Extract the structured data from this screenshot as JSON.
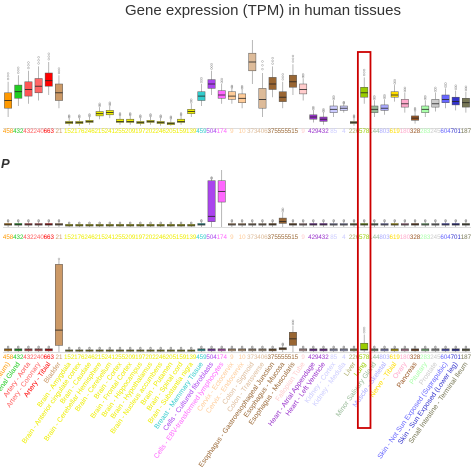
{
  "chart_data": {
    "type": "boxplot",
    "title": "Gene expression (TPM) in human tissues",
    "highlight": {
      "tissue": "Lung",
      "color": "#cc0000"
    },
    "panels": [
      {
        "id": "panel-1",
        "label": ""
      },
      {
        "id": "panel-2",
        "label": "P"
      },
      {
        "id": "panel-3",
        "label": ""
      }
    ],
    "tissues": [
      {
        "name": "Adipose - Visceral (Omentum)",
        "n": "458",
        "color": "#ff9900",
        "b1": [
          10,
          18,
          25,
          32,
          42
        ],
        "b2": [
          0,
          1,
          1.5,
          2,
          3
        ],
        "b3": [
          0,
          0.5,
          1,
          1.5,
          2
        ]
      },
      {
        "name": "Adrenal Gland",
        "n": "432",
        "color": "#22cc22",
        "b1": [
          20,
          27,
          33,
          39,
          48
        ],
        "b2": [
          0,
          1,
          1.5,
          2,
          3
        ],
        "b3": [
          0,
          0.5,
          1,
          1.5,
          2
        ]
      },
      {
        "name": "Artery - Aorta",
        "n": "432",
        "color": "#ff5555",
        "b1": [
          22,
          29,
          35,
          42,
          52
        ],
        "b2": [
          0,
          1,
          1.5,
          2,
          3
        ],
        "b3": [
          0,
          0.5,
          1,
          1.5,
          2
        ]
      },
      {
        "name": "Artery - Coronary",
        "n": "240",
        "color": "#ff6666",
        "b1": [
          25,
          32,
          38,
          45,
          56
        ],
        "b2": [
          0,
          1,
          1.5,
          2,
          3
        ],
        "b3": [
          0,
          0.5,
          1,
          1.5,
          2
        ]
      },
      {
        "name": "Artery - Tibial",
        "n": "663",
        "color": "#ff0000",
        "b1": [
          30,
          38,
          43,
          50,
          60
        ],
        "b2": [
          0,
          1,
          1.5,
          2,
          3
        ],
        "b3": [
          0,
          0.5,
          1,
          1.5,
          2
        ]
      },
      {
        "name": "Bladder",
        "n": "21",
        "color": "#cc9966",
        "b1": [
          18,
          25,
          32,
          40,
          48
        ],
        "b2": [
          0,
          1,
          1.5,
          2,
          3
        ],
        "b3": [
          0,
          3,
          10,
          40,
          42
        ]
      },
      {
        "name": "Brain - Amygdala",
        "n": "152",
        "color": "#eeee00",
        "b1": [
          2,
          4,
          5,
          6,
          9
        ],
        "b2": [
          0,
          0.5,
          1,
          1.5,
          2
        ],
        "b3": [
          0,
          0.3,
          0.6,
          1,
          1.5
        ]
      },
      {
        "name": "Brain - Anterior cingulate cortex",
        "n": "176",
        "color": "#eeee00",
        "b1": [
          2,
          4,
          5,
          6,
          9
        ],
        "b2": [
          0,
          0.5,
          1,
          1.5,
          2
        ],
        "b3": [
          0,
          0.3,
          0.6,
          1,
          1.5
        ]
      },
      {
        "name": "Brain - Caudate",
        "n": "246",
        "color": "#eeee00",
        "b1": [
          3,
          5,
          6,
          7,
          10
        ],
        "b2": [
          0,
          0.5,
          1,
          1.5,
          2
        ],
        "b3": [
          0,
          0.3,
          0.6,
          1,
          1.5
        ]
      },
      {
        "name": "Brain - Cerebellar Hemisphere",
        "n": "215",
        "color": "#eeee00",
        "b1": [
          8,
          11,
          13,
          15,
          19
        ],
        "b2": [
          0,
          0.5,
          1,
          1.5,
          2
        ],
        "b3": [
          0,
          0.3,
          0.6,
          1,
          1.5
        ]
      },
      {
        "name": "Brain - Cerebellum",
        "n": "241",
        "color": "#eeee00",
        "b1": [
          9,
          12,
          14,
          16,
          20
        ],
        "b2": [
          0,
          0.5,
          1,
          1.5,
          2
        ],
        "b3": [
          0,
          0.3,
          0.6,
          1,
          1.5
        ]
      },
      {
        "name": "Brain - Cortex",
        "n": "255",
        "color": "#eeee00",
        "b1": [
          3,
          5,
          6,
          8,
          11
        ],
        "b2": [
          0,
          0.5,
          1,
          1.5,
          2
        ],
        "b3": [
          0,
          0.3,
          0.6,
          1,
          1.5
        ]
      },
      {
        "name": "Brain - Frontal Cortex",
        "n": "209",
        "color": "#eeee00",
        "b1": [
          3,
          5,
          6,
          8,
          11
        ],
        "b2": [
          0,
          0.5,
          1,
          1.5,
          2
        ],
        "b3": [
          0,
          0.3,
          0.6,
          1,
          1.5
        ]
      },
      {
        "name": "Brain - Hippocampus",
        "n": "197",
        "color": "#eeee00",
        "b1": [
          2,
          4,
          5,
          6,
          9
        ],
        "b2": [
          0,
          0.5,
          1,
          1.5,
          2
        ],
        "b3": [
          0,
          0.3,
          0.6,
          1,
          1.5
        ]
      },
      {
        "name": "Brain - Hypothalamus",
        "n": "202",
        "color": "#eeee00",
        "b1": [
          3,
          5,
          6,
          7,
          10
        ],
        "b2": [
          0,
          0.5,
          1,
          1.5,
          2
        ],
        "b3": [
          0,
          0.3,
          0.6,
          1,
          1.5
        ]
      },
      {
        "name": "Brain - Nucleus accumbens",
        "n": "246",
        "color": "#eeee00",
        "b1": [
          2,
          4,
          5,
          6,
          9
        ],
        "b2": [
          0,
          0.5,
          1,
          1.5,
          2
        ],
        "b3": [
          0,
          0.3,
          0.6,
          1,
          1.5
        ]
      },
      {
        "name": "Brain - Putamen",
        "n": "205",
        "color": "#eeee00",
        "b1": [
          2,
          3,
          4,
          5,
          8
        ],
        "b2": [
          0,
          0.5,
          1,
          1.5,
          2
        ],
        "b3": [
          0,
          0.3,
          0.6,
          1,
          1.5
        ]
      },
      {
        "name": "Brain - Spinal cord",
        "n": "159",
        "color": "#eeee00",
        "b1": [
          3,
          5,
          6,
          8,
          11
        ],
        "b2": [
          0,
          0.5,
          1,
          1.5,
          2
        ],
        "b3": [
          0,
          0.3,
          0.6,
          1,
          1.5
        ]
      },
      {
        "name": "Brain - Substantia nigra",
        "n": "139",
        "color": "#eeee00",
        "b1": [
          10,
          13,
          15,
          17,
          22
        ],
        "b2": [
          0,
          0.5,
          1,
          1.5,
          2
        ],
        "b3": [
          0,
          0.3,
          0.6,
          1,
          1.5
        ]
      },
      {
        "name": "Breast - Mammary Tissue",
        "n": "459",
        "color": "#33cccc",
        "b1": [
          20,
          25,
          29,
          33,
          40
        ],
        "b2": [
          0,
          1,
          1.5,
          2,
          3
        ],
        "b3": [
          0,
          0.5,
          1,
          1.5,
          2
        ]
      },
      {
        "name": "Cells - Cultured fibroblasts",
        "n": "504",
        "color": "#aa44ee",
        "b1": [
          30,
          36,
          40,
          44,
          52
        ],
        "b2": [
          0,
          3,
          6,
          26,
          27
        ],
        "b3": [
          0,
          0.5,
          1,
          1.5,
          2
        ]
      },
      {
        "name": "Cells - EBV-transformed lymphocytes",
        "n": "174",
        "color": "#ff66ff",
        "b1": [
          22,
          27,
          30,
          34,
          40
        ],
        "b2": [
          0,
          14,
          20,
          26,
          32
        ],
        "b3": [
          0,
          0.5,
          1,
          1.5,
          2
        ]
      },
      {
        "name": "Cervix - Ectocervix",
        "n": "9",
        "color": "#ffcc99",
        "b1": [
          22,
          26,
          29,
          33,
          36
        ],
        "b2": [
          0,
          1,
          1.5,
          2,
          3
        ],
        "b3": [
          0,
          0.5,
          1,
          1.5,
          2
        ]
      },
      {
        "name": "Cervix - Endocervix",
        "n": "10",
        "color": "#ffcc99",
        "b1": [
          18,
          23,
          27,
          31,
          35
        ],
        "b2": [
          0,
          1,
          1.5,
          2,
          3
        ],
        "b3": [
          0,
          0.5,
          1,
          1.5,
          2
        ]
      },
      {
        "name": "Colon - Sigmoid",
        "n": "373",
        "color": "#ddbb99",
        "b1": [
          40,
          52,
          60,
          68,
          80
        ],
        "b2": [
          0,
          1,
          1.5,
          2,
          3
        ],
        "b3": [
          0,
          0.5,
          1,
          1.5,
          2
        ]
      },
      {
        "name": "Colon - Transverse",
        "n": "406",
        "color": "#ddbb99",
        "b1": [
          10,
          18,
          26,
          36,
          50
        ],
        "b2": [
          0,
          1,
          1.5,
          2,
          3
        ],
        "b3": [
          0,
          0.5,
          1,
          1.5,
          2
        ]
      },
      {
        "name": "Esophagus - Gastroesophageal Junction",
        "n": "375",
        "color": "#996633",
        "b1": [
          28,
          35,
          40,
          46,
          56
        ],
        "b2": [
          0,
          1,
          1.5,
          2,
          3
        ],
        "b3": [
          0,
          0.5,
          1,
          1.5,
          2
        ]
      },
      {
        "name": "Esophagus - Mucosa",
        "n": "555",
        "color": "#996633",
        "b1": [
          18,
          24,
          28,
          33,
          42
        ],
        "b2": [
          0,
          2,
          3,
          5,
          8
        ],
        "b3": [
          0,
          1,
          1.5,
          2,
          3
        ]
      },
      {
        "name": "Esophagus - Muscularis",
        "n": "515",
        "color": "#996633",
        "b1": [
          30,
          37,
          42,
          48,
          58
        ],
        "b2": [
          0,
          1,
          1.5,
          2,
          3
        ],
        "b3": [
          0,
          3,
          6,
          9,
          12
        ]
      },
      {
        "name": "Fallopian Tube",
        "n": "9",
        "color": "#ffcccc",
        "b1": [
          25,
          31,
          35,
          40,
          45
        ],
        "b2": [
          0,
          1,
          1.5,
          2,
          3
        ],
        "b3": [
          0,
          0.5,
          1,
          1.5,
          2
        ]
      },
      {
        "name": "Heart - Atrial Appendage",
        "n": "429",
        "color": "#9933cc",
        "b1": [
          5,
          8,
          10,
          12,
          16
        ],
        "b2": [
          0,
          1,
          1.5,
          2,
          3
        ],
        "b3": [
          0,
          0.5,
          1,
          1.5,
          2
        ]
      },
      {
        "name": "Heart - Left Ventricle",
        "n": "432",
        "color": "#9933cc",
        "b1": [
          3,
          6,
          8,
          10,
          14
        ],
        "b2": [
          0,
          1,
          1.5,
          2,
          3
        ],
        "b3": [
          0,
          0.5,
          1,
          1.5,
          2
        ]
      },
      {
        "name": "Kidney - Cortex",
        "n": "85",
        "color": "#ccccff",
        "b1": [
          10,
          14,
          17,
          20,
          25
        ],
        "b2": [
          0,
          1,
          1.5,
          2,
          3
        ],
        "b3": [
          0,
          0.5,
          1,
          1.5,
          2
        ]
      },
      {
        "name": "Kidney - Medulla",
        "n": "4",
        "color": "#ccccff",
        "b1": [
          14,
          16,
          18,
          20,
          22
        ],
        "b2": [
          0,
          1,
          1.5,
          2,
          3
        ],
        "b3": [
          0,
          0.5,
          1,
          1.5,
          2
        ]
      },
      {
        "name": "Liver",
        "n": "226",
        "color": "#aaaa66",
        "b1": [
          2,
          4,
          5,
          6,
          9
        ],
        "b2": [
          0,
          1,
          1.5,
          2,
          3
        ],
        "b3": [
          0,
          0.5,
          1,
          1.5,
          2
        ]
      },
      {
        "name": "Lung",
        "n": "578",
        "color": "#99cc00",
        "b1": [
          22,
          28,
          32,
          37,
          46
        ],
        "b2": [
          0,
          1,
          1.5,
          2,
          3
        ],
        "b3": [
          0,
          0.8,
          1.2,
          4,
          8
        ]
      },
      {
        "name": "Minor Salivary Gland",
        "n": "144",
        "color": "#99bb99",
        "b1": [
          10,
          14,
          17,
          20,
          25
        ],
        "b2": [
          0,
          1,
          1.5,
          2,
          3
        ],
        "b3": [
          0,
          0.5,
          1,
          1.5,
          2
        ]
      },
      {
        "name": "Muscle - Skeletal",
        "n": "803",
        "color": "#aaaaff",
        "b1": [
          12,
          16,
          18,
          21,
          26
        ],
        "b2": [
          0,
          1,
          1.5,
          2,
          3
        ],
        "b3": [
          0,
          0.5,
          1,
          1.5,
          2
        ]
      },
      {
        "name": "Nerve - Tibial",
        "n": "619",
        "color": "#ffdd00",
        "b1": [
          24,
          28,
          30,
          33,
          39
        ],
        "b2": [
          0,
          1,
          1.5,
          2,
          3
        ],
        "b3": [
          0,
          0.5,
          1,
          1.5,
          2
        ]
      },
      {
        "name": "Ovary",
        "n": "180",
        "color": "#ffaacc",
        "b1": [
          14,
          19,
          22,
          26,
          32
        ],
        "b2": [
          0,
          1,
          1.5,
          2,
          3
        ],
        "b3": [
          0,
          0.5,
          1,
          1.5,
          2
        ]
      },
      {
        "name": "Pancreas",
        "n": "328",
        "color": "#995522",
        "b1": [
          4,
          7,
          9,
          11,
          15
        ],
        "b2": [
          0,
          1,
          1.5,
          2,
          3
        ],
        "b3": [
          0,
          0.5,
          1,
          1.5,
          2
        ]
      },
      {
        "name": "Pituitary",
        "n": "283",
        "color": "#aaffaa",
        "b1": [
          10,
          14,
          17,
          20,
          25
        ],
        "b2": [
          0,
          1,
          1.5,
          2,
          3
        ],
        "b3": [
          0,
          0.5,
          1,
          1.5,
          2
        ]
      },
      {
        "name": "Prostate",
        "n": "245",
        "color": "#cccccc",
        "b1": [
          15,
          19,
          22,
          26,
          32
        ],
        "b2": [
          0,
          1,
          1.5,
          2,
          3
        ],
        "b3": [
          0,
          0.5,
          1,
          1.5,
          2
        ]
      },
      {
        "name": "Skin - Not Sun Exposed (Suprapubic)",
        "n": "604",
        "color": "#6666ff",
        "b1": [
          18,
          23,
          26,
          30,
          36
        ],
        "b2": [
          0,
          1,
          1.5,
          2,
          3
        ],
        "b3": [
          0,
          0.5,
          1,
          1.5,
          2
        ]
      },
      {
        "name": "Skin - Sun Exposed (Lower leg)",
        "n": "701",
        "color": "#3333cc",
        "b1": [
          16,
          21,
          24,
          28,
          34
        ],
        "b2": [
          0,
          1,
          1.5,
          2,
          3
        ],
        "b3": [
          0,
          0.5,
          1,
          1.5,
          2
        ]
      },
      {
        "name": "Small Intestine - Terminal Ileum",
        "n": "187",
        "color": "#777755",
        "b1": [
          14,
          19,
          23,
          27,
          33
        ],
        "b2": [
          0,
          1,
          1.5,
          2,
          3
        ],
        "b3": [
          0,
          0.5,
          1,
          1.5,
          2
        ]
      }
    ]
  }
}
